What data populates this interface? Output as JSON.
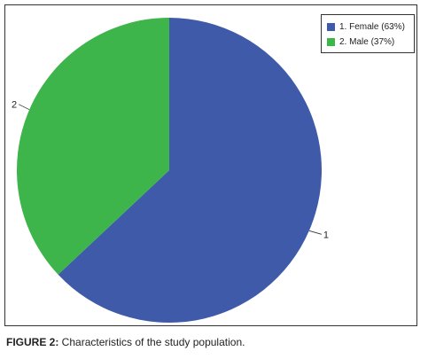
{
  "chart_data": {
    "type": "pie",
    "categories": [
      "1. Female (63%)",
      "2. Male (37%)"
    ],
    "values": [
      63,
      37
    ],
    "slice_labels": [
      "1",
      "2"
    ],
    "colors": [
      "#3f5aa8",
      "#3db54a"
    ],
    "legend_placement": "top-right",
    "title": "",
    "xlabel": "",
    "ylabel": ""
  },
  "figure": {
    "caption_prefix": "FIGURE 2:",
    "caption_text": " Characteristics of the study population."
  }
}
